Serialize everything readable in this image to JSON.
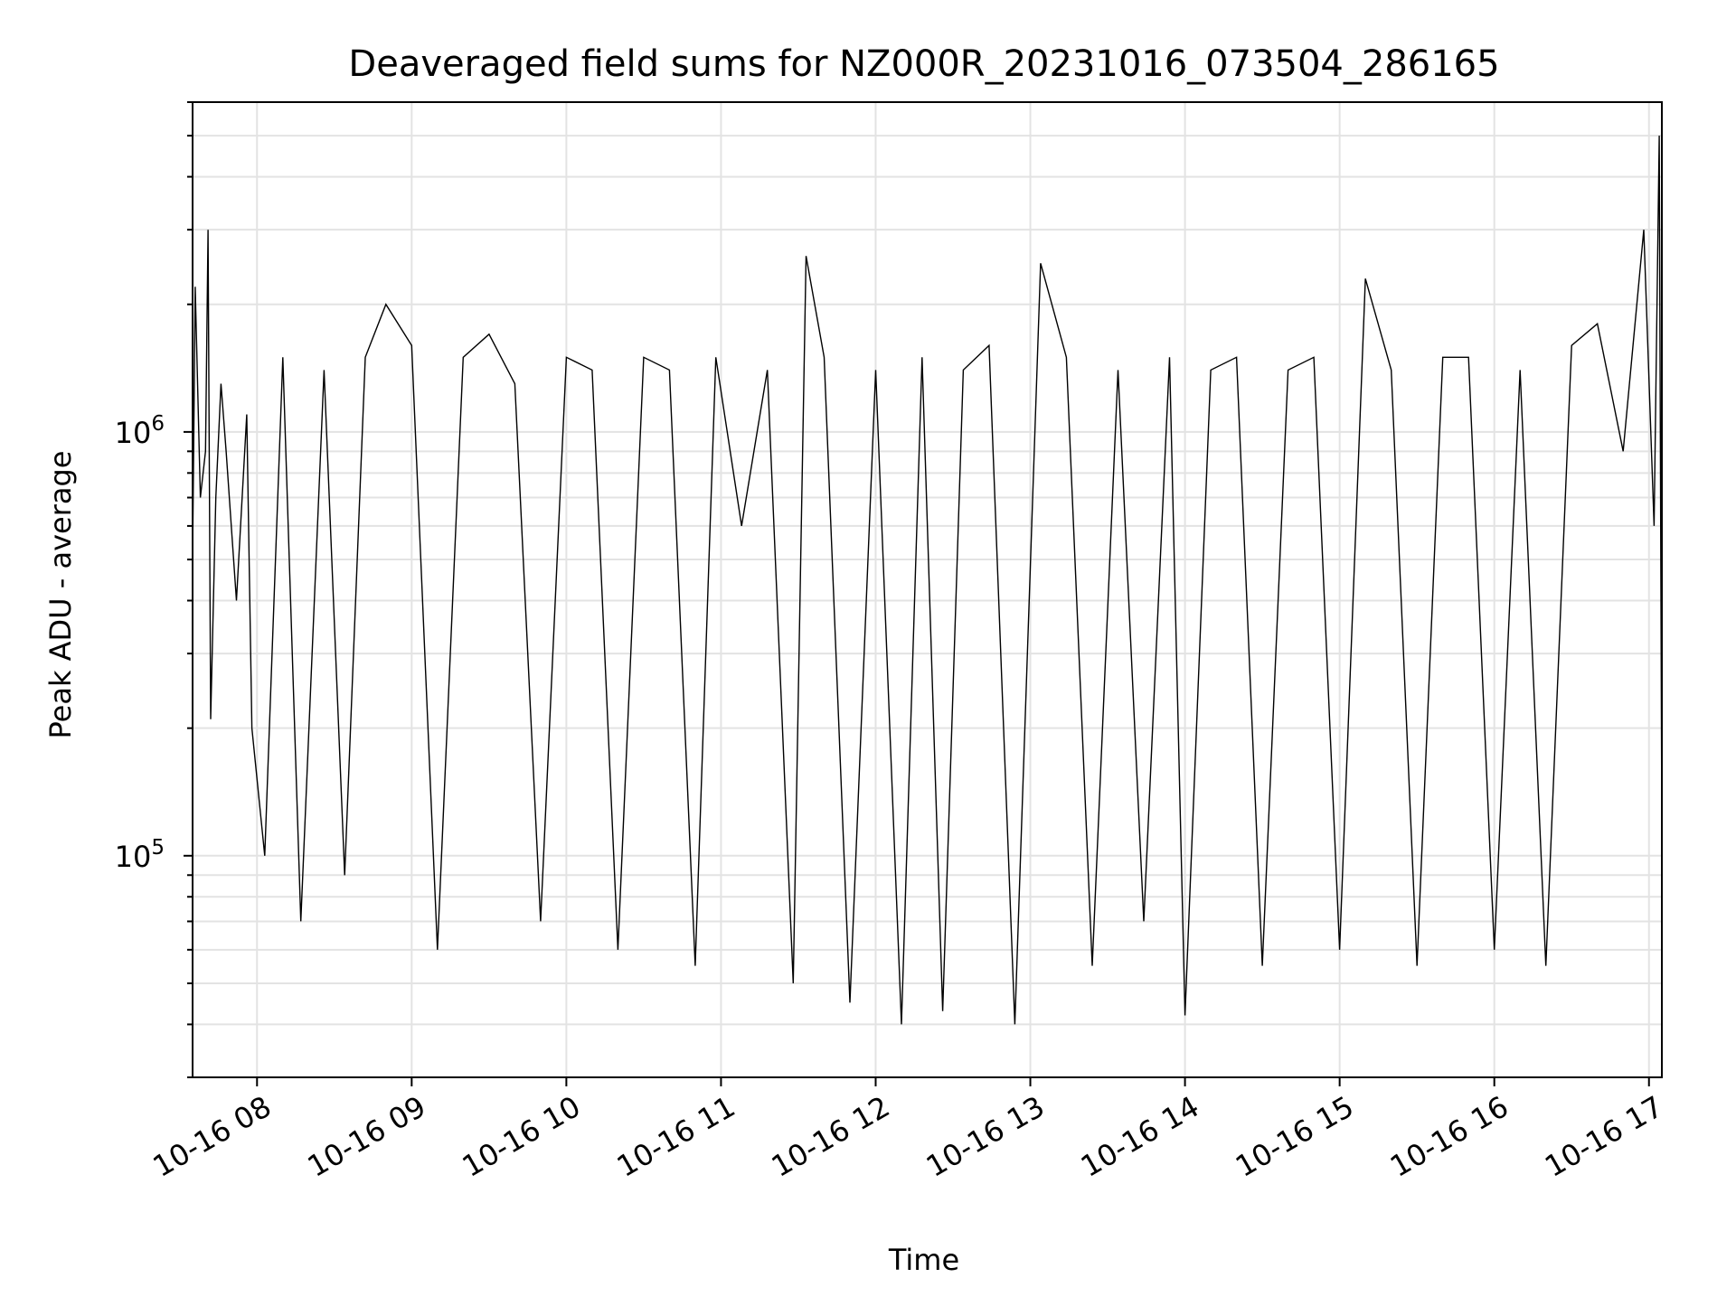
{
  "chart_data": {
    "type": "line",
    "title": "Deaveraged field sums for NZ000R_20231016_073504_286165",
    "xlabel": "Time",
    "ylabel": "Peak ADU - average",
    "yscale": "log",
    "ylim": [
      30000,
      6000000
    ],
    "xlim": [
      "2023-10-16T07:35",
      "2023-10-16T17:05"
    ],
    "grid": true,
    "line_color": "#000000",
    "x_ticks": [
      "10-16 08",
      "10-16 09",
      "10-16 10",
      "10-16 11",
      "10-16 12",
      "10-16 13",
      "10-16 14",
      "10-16 15",
      "10-16 16",
      "10-16 17"
    ],
    "y_ticks": [
      {
        "value": 100000,
        "base": "10",
        "exp": "5"
      },
      {
        "value": 1000000,
        "base": "10",
        "exp": "6"
      }
    ],
    "series": [
      {
        "values_description_note": "",
        "x": [
          "2023-10-16T07:35",
          "2023-10-16T07:36",
          "2023-10-16T07:38",
          "2023-10-16T07:40",
          "2023-10-16T07:41",
          "2023-10-16T07:42",
          "2023-10-16T07:44",
          "2023-10-16T07:46",
          "2023-10-16T07:48",
          "2023-10-16T07:52",
          "2023-10-16T07:56",
          "2023-10-16T07:58",
          "2023-10-16T08:03",
          "2023-10-16T08:10",
          "2023-10-16T08:17",
          "2023-10-16T08:26",
          "2023-10-16T08:34",
          "2023-10-16T08:42",
          "2023-10-16T08:50",
          "2023-10-16T09:00",
          "2023-10-16T09:10",
          "2023-10-16T09:20",
          "2023-10-16T09:30",
          "2023-10-16T09:40",
          "2023-10-16T09:50",
          "2023-10-16T10:00",
          "2023-10-16T10:10",
          "2023-10-16T10:20",
          "2023-10-16T10:30",
          "2023-10-16T10:40",
          "2023-10-16T10:50",
          "2023-10-16T10:58",
          "2023-10-16T11:08",
          "2023-10-16T11:18",
          "2023-10-16T11:28",
          "2023-10-16T11:33",
          "2023-10-16T11:40",
          "2023-10-16T11:50",
          "2023-10-16T12:00",
          "2023-10-16T12:10",
          "2023-10-16T12:18",
          "2023-10-16T12:26",
          "2023-10-16T12:34",
          "2023-10-16T12:44",
          "2023-10-16T12:54",
          "2023-10-16T13:04",
          "2023-10-16T13:14",
          "2023-10-16T13:24",
          "2023-10-16T13:34",
          "2023-10-16T13:44",
          "2023-10-16T13:54",
          "2023-10-16T14:00",
          "2023-10-16T14:10",
          "2023-10-16T14:20",
          "2023-10-16T14:30",
          "2023-10-16T14:40",
          "2023-10-16T14:50",
          "2023-10-16T15:00",
          "2023-10-16T15:10",
          "2023-10-16T15:20",
          "2023-10-16T15:30",
          "2023-10-16T15:40",
          "2023-10-16T15:50",
          "2023-10-16T16:00",
          "2023-10-16T16:10",
          "2023-10-16T16:20",
          "2023-10-16T16:30",
          "2023-10-16T16:40",
          "2023-10-16T16:50",
          "2023-10-16T16:58",
          "2023-10-16T17:02",
          "2023-10-16T17:04",
          "2023-10-16T17:05"
        ],
        "y": [
          500000,
          2200000,
          700000,
          900000,
          3000000,
          210000,
          700000,
          1300000,
          900000,
          400000,
          1100000,
          200000,
          100000,
          1500000,
          70000,
          1400000,
          90000,
          1500000,
          2000000,
          1600000,
          60000,
          1500000,
          1700000,
          1300000,
          70000,
          1500000,
          1400000,
          60000,
          1500000,
          1400000,
          55000,
          1500000,
          600000,
          1400000,
          50000,
          2600000,
          1500000,
          45000,
          1400000,
          40000,
          1500000,
          43000,
          1400000,
          1600000,
          40000,
          2500000,
          1500000,
          55000,
          1400000,
          70000,
          1500000,
          42000,
          1400000,
          1500000,
          55000,
          1400000,
          1500000,
          60000,
          2300000,
          1400000,
          55000,
          1500000,
          1500000,
          60000,
          1400000,
          55000,
          1600000,
          1800000,
          900000,
          3000000,
          600000,
          5000000,
          110000
        ]
      }
    ]
  }
}
